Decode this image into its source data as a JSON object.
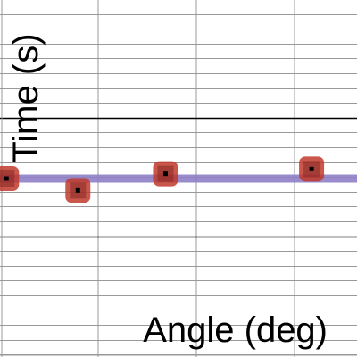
{
  "chart_data": {
    "type": "scatter",
    "xlabel": "Angle (deg)",
    "ylabel": "Time (s)",
    "xlim": [
      0,
      55
    ],
    "ylim": [
      0.6,
      1.35
    ],
    "grid": true,
    "points": [
      {
        "x": 1,
        "y": 0.975
      },
      {
        "x": 12,
        "y": 0.95
      },
      {
        "x": 25.5,
        "y": 0.985
      },
      {
        "x": 48,
        "y": 0.995
      }
    ],
    "fit_line": {
      "y": 0.975
    },
    "colors": {
      "point": "#c0392b",
      "fit": "#8f7fc7",
      "grid_minor": "#999999",
      "grid_major": "#000000"
    }
  }
}
